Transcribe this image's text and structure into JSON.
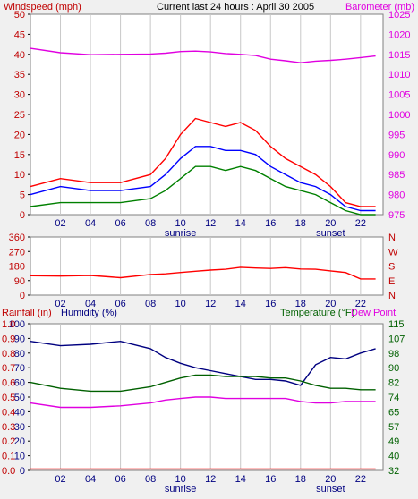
{
  "header": {
    "left": "Windspeed (mph)",
    "center": "Current last 24 hours : April 30 2005",
    "right": "Barometer (mb)"
  },
  "colors": {
    "frame": "#f0f0f0",
    "plot": "#ffffff",
    "grid": "#c8c8c8",
    "red": "#ff0000",
    "blue": "#0000ff",
    "green": "#008000",
    "magenta": "#e000e0",
    "darkred": "#c00000",
    "navy": "#000080",
    "darkgreen": "#006000"
  },
  "x_ticks": [
    "02",
    "04",
    "06",
    "08",
    "10",
    "12",
    "14",
    "16",
    "18",
    "20",
    "22"
  ],
  "sunrise_label": "sunrise",
  "sunset_label": "sunset",
  "chart_data": [
    {
      "type": "line",
      "title": "Current last 24 hours : April 30 2005",
      "ylabel": "Windspeed (mph)",
      "ylabel_right": "Barometer (mb)",
      "x": [
        0,
        2,
        4,
        6,
        8,
        9,
        10,
        11,
        12,
        13,
        14,
        15,
        16,
        17,
        18,
        19,
        20,
        21,
        22,
        23
      ],
      "ylim": [
        0,
        50
      ],
      "ylim_right": [
        975,
        1025
      ],
      "y_ticks": [
        0,
        5,
        10,
        15,
        20,
        25,
        30,
        35,
        40,
        45,
        50
      ],
      "y_ticks_right": [
        975,
        980,
        985,
        990,
        995,
        1000,
        1005,
        1010,
        1015,
        1020,
        1025
      ],
      "grid": true,
      "series": [
        {
          "name": "Windspeed (mph)",
          "color": "red",
          "axis": "left",
          "values": [
            7,
            9,
            8,
            8,
            10,
            14,
            20,
            24,
            23,
            22,
            23,
            21,
            17,
            14,
            12,
            10,
            7,
            3,
            2,
            2
          ]
        },
        {
          "color": "blue",
          "axis": "left",
          "values": [
            5,
            7,
            6,
            6,
            7,
            10,
            14,
            17,
            17,
            16,
            16,
            15,
            12,
            10,
            8,
            7,
            5,
            2,
            1,
            1
          ]
        },
        {
          "color": "green",
          "axis": "left",
          "values": [
            2,
            3,
            3,
            3,
            4,
            6,
            9,
            12,
            12,
            11,
            12,
            11,
            9,
            7,
            6,
            5,
            3,
            1,
            0,
            0
          ]
        },
        {
          "name": "Barometer (mb)",
          "color": "magenta",
          "axis": "right",
          "values": [
            1016.5,
            1015.4,
            1014.9,
            1015.0,
            1015.1,
            1015.3,
            1015.7,
            1015.8,
            1015.6,
            1015.2,
            1015.0,
            1014.7,
            1013.8,
            1013.4,
            1012.9,
            1013.3,
            1013.5,
            1013.8,
            1014.2,
            1014.6
          ]
        }
      ]
    },
    {
      "type": "line",
      "ylim": [
        0,
        360
      ],
      "y_ticks": [
        0,
        90,
        180,
        270,
        360
      ],
      "y_ticks_right": [
        "N",
        "E",
        "S",
        "W",
        "N"
      ],
      "grid": true,
      "series": [
        {
          "color": "red",
          "values": [
            120,
            118,
            122,
            108,
            128,
            132,
            140,
            148,
            155,
            160,
            172,
            168,
            165,
            170,
            162,
            160,
            150,
            140,
            100,
            100
          ]
        }
      ]
    },
    {
      "type": "line",
      "ylabel": "Rainfall (in)",
      "ylabel2": "Humidity (%)",
      "ylabel_right": "Temperature (°F)",
      "ylabel_right2": "Dew Point",
      "ylim": [
        0,
        100
      ],
      "y_ticks": [
        0,
        10,
        20,
        30,
        40,
        50,
        60,
        70,
        80,
        90,
        100
      ],
      "y_ticks_rain": [
        "0.0",
        "0.1",
        "0.2",
        "0.3",
        "0.4",
        "0.5",
        "0.6",
        "0.7",
        "0.8",
        "0.9",
        "1.0"
      ],
      "y_ticks_right": [
        "32",
        "40",
        "49",
        "57",
        "65",
        "74",
        "82",
        "90",
        "98",
        "107",
        "115"
      ],
      "grid": true,
      "series": [
        {
          "name": "Rainfall (in)",
          "color": "red",
          "values": [
            1,
            1,
            1,
            1,
            1,
            1,
            1,
            1,
            1,
            1,
            1,
            1,
            1,
            1,
            1,
            1,
            1,
            1,
            1,
            1
          ]
        },
        {
          "name": "Humidity (%)",
          "color": "navy",
          "values": [
            88,
            85,
            86,
            88,
            83,
            77,
            73,
            70,
            68,
            66,
            64,
            62,
            62,
            61,
            58,
            72,
            77,
            76,
            80,
            83
          ]
        },
        {
          "name": "Temperature (°F)",
          "color": "darkgreen",
          "values": [
            60,
            56,
            54,
            54,
            57,
            60,
            63,
            65,
            65,
            64,
            64,
            64,
            63,
            63,
            61,
            58,
            56,
            56,
            55,
            55
          ]
        },
        {
          "name": "Dew Point",
          "color": "magenta",
          "values": [
            46,
            43,
            43,
            44,
            46,
            48,
            49,
            50,
            50,
            49,
            49,
            49,
            49,
            49,
            47,
            46,
            46,
            47,
            47,
            47
          ]
        }
      ]
    }
  ]
}
